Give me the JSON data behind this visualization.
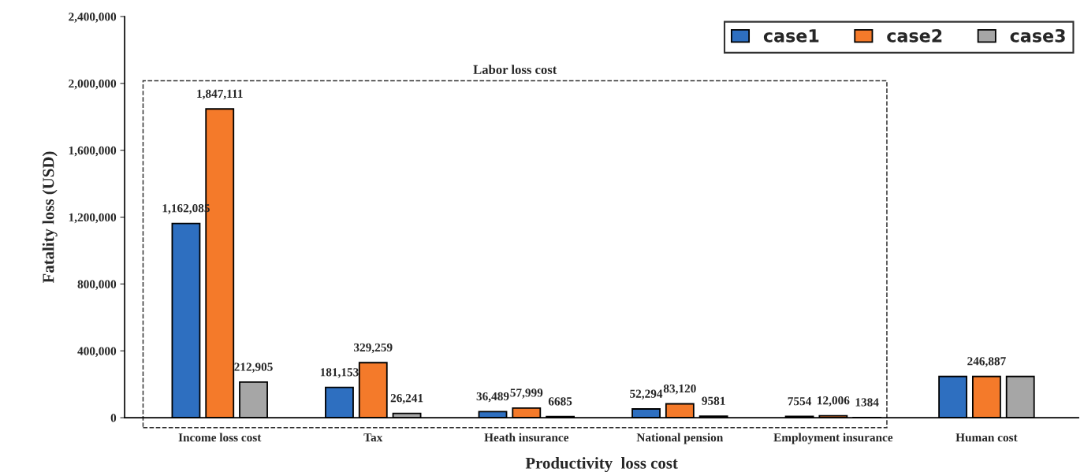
{
  "chart_data": {
    "type": "bar",
    "xlabel": "Productivity  loss cost",
    "ylabel": "Fatality loss (USD)",
    "categories": [
      "Income loss cost",
      "Tax",
      "Heath insurance",
      "National pension",
      "Employment insurance",
      "Human cost"
    ],
    "series": [
      {
        "name": "case1",
        "color": "#2e6fc0",
        "values": [
          1162085,
          181153,
          36489,
          52294,
          7554,
          246887
        ],
        "value_labels": [
          "1,162,085",
          "181,153",
          "36,489",
          "52,294",
          "7554",
          null
        ]
      },
      {
        "name": "case2",
        "color": "#f47a2a",
        "values": [
          1847111,
          329259,
          57999,
          83120,
          12006,
          246887
        ],
        "value_labels": [
          "1,847,111",
          "329,259",
          "57,999",
          "83,120",
          "12,006",
          "246,887"
        ]
      },
      {
        "name": "case3",
        "color": "#a6a6a6",
        "values": [
          212905,
          26241,
          6685,
          9581,
          1384,
          246887
        ],
        "value_labels": [
          "212,905",
          "26,241",
          "6685",
          "9581",
          "1384",
          null
        ]
      }
    ],
    "ylim": [
      0,
      2400000
    ],
    "yticks": [
      {
        "value": 0,
        "label": "0"
      },
      {
        "value": 400000,
        "label": "400,000"
      },
      {
        "value": 800000,
        "label": "800,000"
      },
      {
        "value": 1200000,
        "label": "1,200,000"
      },
      {
        "value": 1600000,
        "label": "1,600,000"
      },
      {
        "value": 2000000,
        "label": "2,000,000"
      },
      {
        "value": 2400000,
        "label": "2,400,000"
      }
    ],
    "annotations": [
      "Labor loss cost"
    ],
    "legend": "top right",
    "grid": false
  }
}
